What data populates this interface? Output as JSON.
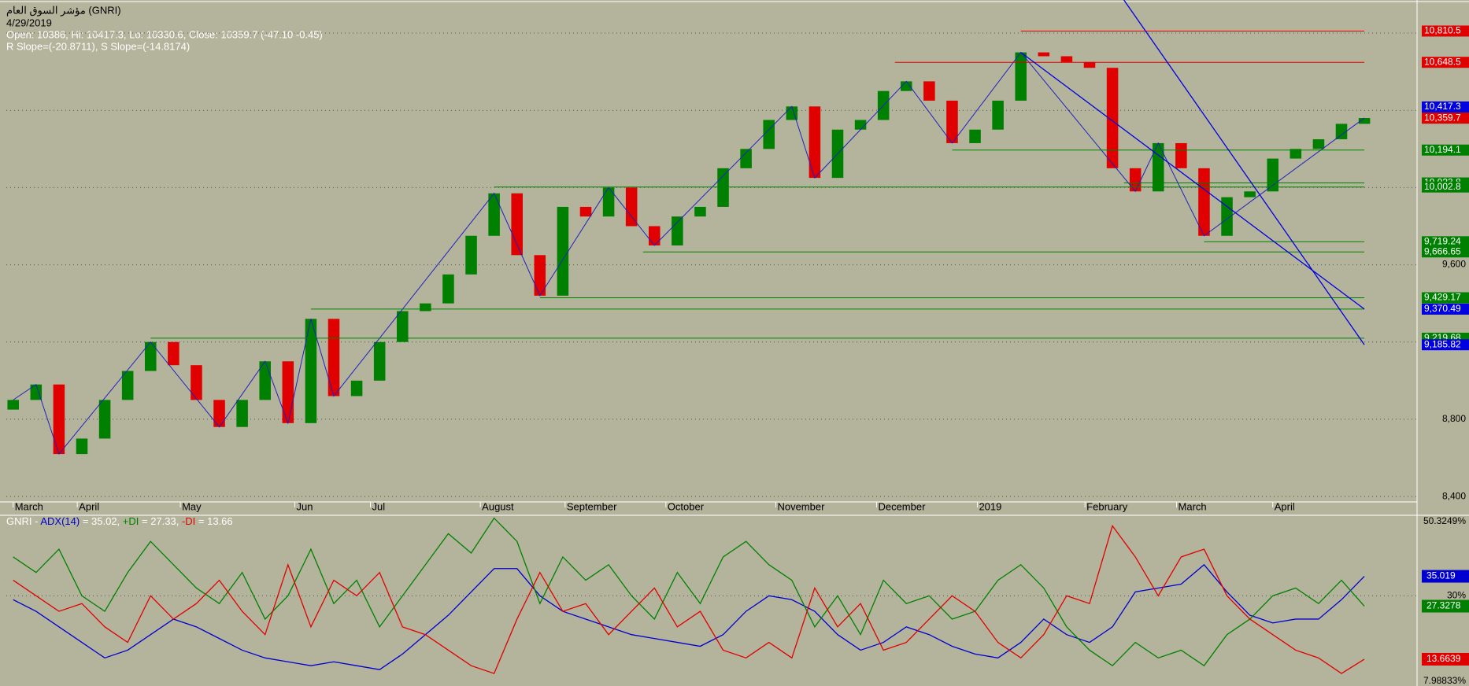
{
  "chart_data": {
    "type": "candlestick",
    "title": "مؤشر السوق العام (GNRI)",
    "date": "4/29/2019",
    "ohlc_text": "Open: 10386, Hi: 10417.3, Lo: 10330.6, Close: 10359.7 (-47.10 -0.45)",
    "slope_text": "R Slope=(-20.8711), S Slope=(-14.8174)",
    "open": [
      8850,
      8900,
      8980,
      8620,
      8700,
      8900,
      9050,
      9200,
      9080,
      8900,
      8760,
      8900,
      9100,
      8780,
      9320,
      8920,
      9000,
      9200,
      9360,
      9400,
      9550,
      9750,
      9970,
      9650,
      9440,
      9900,
      9850,
      10000,
      9800,
      9700,
      9850,
      9900,
      10100,
      10200,
      10350,
      10420,
      10050,
      10300,
      10350,
      10500,
      10550,
      10450,
      10230,
      10300,
      10450,
      10700,
      10680,
      10650,
      10620,
      10100,
      9980,
      10230,
      10100,
      9750,
      9950,
      9980,
      10150,
      10200,
      10250,
      10330
    ],
    "close": [
      8900,
      8980,
      8620,
      8700,
      8900,
      9050,
      9200,
      9080,
      8900,
      8760,
      8900,
      9100,
      8780,
      9320,
      8920,
      9000,
      9200,
      9360,
      9400,
      9550,
      9750,
      9970,
      9650,
      9440,
      9900,
      9850,
      10000,
      9800,
      9700,
      9850,
      9900,
      10100,
      10200,
      10350,
      10420,
      10050,
      10300,
      10350,
      10500,
      10550,
      10450,
      10230,
      10300,
      10450,
      10700,
      10680,
      10650,
      10620,
      10100,
      9980,
      10230,
      10100,
      9750,
      9950,
      9980,
      10150,
      10200,
      10250,
      10330,
      10360
    ],
    "up_color": "#008000",
    "down_color": "#e00000",
    "xticks": [
      {
        "value": 0,
        "label": "March"
      },
      {
        "value": 2.8,
        "label": "April"
      },
      {
        "value": 7.3,
        "label": "May"
      },
      {
        "value": 12.3,
        "label": "Jun"
      },
      {
        "value": 15.6,
        "label": "Jul"
      },
      {
        "value": 20.4,
        "label": "August"
      },
      {
        "value": 24.1,
        "label": "September"
      },
      {
        "value": 28.5,
        "label": "October"
      },
      {
        "value": 33.3,
        "label": "November"
      },
      {
        "value": 37.7,
        "label": "December"
      },
      {
        "value": 42.1,
        "label": "2019"
      },
      {
        "value": 46.8,
        "label": "February"
      },
      {
        "value": 50.8,
        "label": "March"
      },
      {
        "value": 55,
        "label": "April"
      }
    ],
    "xlim": [
      -0.3,
      61.3
    ],
    "ylim": [
      8380,
      10955
    ],
    "yticks": [
      {
        "value": 8400,
        "label": "8,400"
      },
      {
        "value": 8800,
        "label": "8,800"
      },
      {
        "value": 9200,
        "label": "9,200"
      },
      {
        "value": 9600,
        "label": "9,600"
      },
      {
        "value": 10000,
        "label": "10,000"
      },
      {
        "value": 10400,
        "label": "10,400"
      },
      {
        "value": 10800,
        "label": "10,800"
      }
    ],
    "levels": [
      {
        "value": 10810.5,
        "label": "10,810.5",
        "color": "#e00000"
      },
      {
        "value": 10648.5,
        "label": "10,648.5",
        "color": "#e00000"
      },
      {
        "value": 10417.3,
        "label": "10,417.3",
        "color": "#0000e0"
      },
      {
        "value": 10359.7,
        "label": "10,359.7",
        "color": "#000000"
      },
      {
        "value": 10359.7,
        "label": "10,359.7",
        "color": "#e00000"
      },
      {
        "value": 10194.1,
        "label": "10,194.1",
        "color": "#008000"
      },
      {
        "value": 10023.8,
        "label": "10,023.8",
        "color": "#008000"
      },
      {
        "value": 10002.8,
        "label": "10,002.8",
        "color": "#008000"
      },
      {
        "value": 9719.24,
        "label": "9,719.24",
        "color": "#008000"
      },
      {
        "value": 9666.65,
        "label": "9,666.65",
        "color": "#008000"
      },
      {
        "value": 9429.17,
        "label": "9,429.17",
        "color": "#008000"
      },
      {
        "value": 9370.66,
        "label": "9,370.66",
        "color": "#008000"
      },
      {
        "value": 9370.49,
        "label": "9,370.49",
        "color": "#0000e0"
      },
      {
        "value": 9219.68,
        "label": "9,219.68",
        "color": "#008000"
      },
      {
        "value": 9185.82,
        "label": "9,185.82",
        "color": "#0000e0"
      }
    ],
    "indicator": {
      "type": "line",
      "legend_parts": [
        "GNRI - ",
        "ADX(14)",
        " = 35.02, ",
        "+DI",
        " = 27.33, ",
        "-DI",
        " = 13.66"
      ],
      "ylim": [
        7.98833,
        50.3249
      ],
      "yticks": [
        {
          "value": 7.98833,
          "label": "7.98833%"
        },
        {
          "value": 30,
          "label": "30%"
        },
        {
          "value": 50.3249,
          "label": "50.3249%"
        }
      ],
      "series": [
        {
          "name": "ADX(14)",
          "color": "#0000d0",
          "values": [
            29,
            26,
            22,
            18,
            14,
            16,
            20,
            24,
            22,
            19,
            16,
            14,
            13,
            12,
            13,
            12,
            11,
            15,
            20,
            25,
            31,
            37,
            37,
            30,
            26,
            24,
            22,
            20,
            19,
            18,
            17,
            20,
            26,
            30,
            29,
            26,
            20,
            16,
            18,
            22,
            20,
            17,
            15,
            14,
            18,
            24,
            20,
            18,
            22,
            31,
            32,
            33,
            38,
            31,
            25,
            23,
            24,
            24,
            29,
            35.019
          ],
          "last_label": "35.019"
        },
        {
          "name": "+DI",
          "color": "#008000",
          "values": [
            40,
            36,
            42,
            30,
            26,
            36,
            44,
            38,
            32,
            28,
            36,
            24,
            30,
            42,
            28,
            34,
            22,
            30,
            38,
            46,
            41,
            50,
            44,
            28,
            40,
            34,
            38,
            30,
            24,
            36,
            28,
            40,
            44,
            38,
            34,
            22,
            30,
            20,
            34,
            28,
            30,
            24,
            26,
            34,
            38,
            32,
            22,
            16,
            12,
            18,
            14,
            16,
            12,
            20,
            24,
            30,
            32,
            28,
            34,
            27.3278
          ],
          "last_label": "27.3278"
        },
        {
          "name": "-DI",
          "color": "#e00000",
          "values": [
            34,
            30,
            26,
            28,
            22,
            18,
            30,
            24,
            28,
            34,
            26,
            20,
            38,
            22,
            34,
            30,
            36,
            22,
            20,
            16,
            12,
            10,
            24,
            36,
            26,
            28,
            20,
            26,
            32,
            22,
            26,
            16,
            14,
            18,
            14,
            32,
            22,
            28,
            16,
            18,
            24,
            30,
            26,
            18,
            14,
            20,
            30,
            28,
            48,
            40,
            30,
            40,
            42,
            30,
            24,
            20,
            16,
            14,
            10,
            13.6639
          ],
          "last_label": "13.6639"
        }
      ]
    }
  }
}
